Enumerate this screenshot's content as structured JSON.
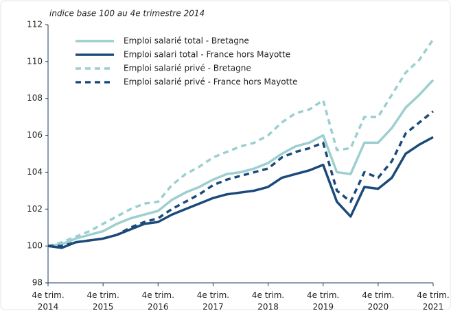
{
  "chart_data": {
    "type": "line",
    "subtitle": "indice base 100 au 4e trimestre 2014",
    "categories": [
      "4e trim. 2014",
      null,
      null,
      null,
      "4e trim. 2015",
      null,
      null,
      null,
      "4e trim. 2016",
      null,
      null,
      null,
      "4e trim. 2017",
      null,
      null,
      null,
      "4e trim. 2018",
      null,
      null,
      null,
      "4e trim. 2019",
      null,
      null,
      null,
      "4e trim. 2020",
      null,
      null,
      null,
      "4e trim. 2021"
    ],
    "series": [
      {
        "name": "Emploi salarié total - Bretagne",
        "color": "#9ccfd0",
        "dashed": false,
        "values": [
          100,
          100.1,
          100.4,
          100.6,
          100.8,
          101.2,
          101.5,
          101.7,
          101.9,
          102.5,
          102.9,
          103.2,
          103.6,
          103.9,
          104.0,
          104.2,
          104.5,
          105.0,
          105.4,
          105.6,
          106.0,
          104.0,
          103.9,
          105.6,
          105.6,
          106.4,
          107.5,
          108.2,
          109.0
        ]
      },
      {
        "name": "Emploi salari total - France hors Mayotte",
        "color": "#1b4a7a",
        "dashed": false,
        "values": [
          100,
          99.9,
          100.2,
          100.3,
          100.4,
          100.6,
          100.9,
          101.2,
          101.3,
          101.7,
          102.0,
          102.3,
          102.6,
          102.8,
          102.9,
          103.0,
          103.2,
          103.7,
          103.9,
          104.1,
          104.4,
          102.4,
          101.6,
          103.2,
          103.1,
          103.7,
          105.0,
          105.5,
          105.9
        ]
      },
      {
        "name": "Emploi salarié privé - Bretagne",
        "color": "#9ccfd0",
        "dashed": true,
        "values": [
          100,
          100.2,
          100.5,
          100.8,
          101.2,
          101.6,
          102.0,
          102.3,
          102.4,
          103.3,
          103.9,
          104.3,
          104.8,
          105.1,
          105.4,
          105.6,
          106.0,
          106.7,
          107.2,
          107.4,
          107.9,
          105.2,
          105.3,
          107.0,
          107.0,
          108.2,
          109.4,
          110.1,
          111.2
        ]
      },
      {
        "name": "Emploi salarié privé - France hors Mayotte",
        "color": "#1b4a7a",
        "dashed": true,
        "values": [
          100,
          100.0,
          100.2,
          100.3,
          100.4,
          100.6,
          101.0,
          101.3,
          101.5,
          102.0,
          102.4,
          102.8,
          103.3,
          103.6,
          103.8,
          104.0,
          104.2,
          104.8,
          105.1,
          105.3,
          105.6,
          103.0,
          102.4,
          104.0,
          103.7,
          104.6,
          106.1,
          106.7,
          107.3
        ]
      }
    ],
    "ylim": [
      98,
      112
    ],
    "yticks": [
      98,
      100,
      102,
      104,
      106,
      108,
      110,
      112
    ],
    "grid": false
  }
}
